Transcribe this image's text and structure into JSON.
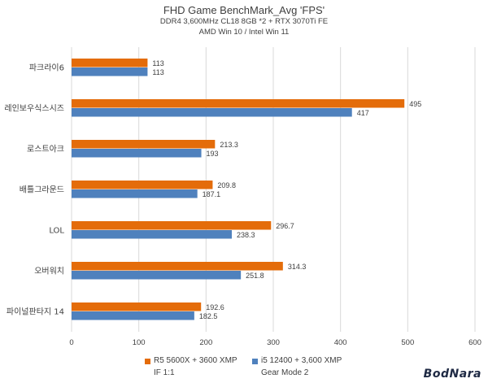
{
  "header": {
    "title": "FHD Game BenchMark_Avg 'FPS'",
    "subtitle1": "DDR4 3,600MHz CL18 8GB *2 + RTX 3070Ti FE",
    "subtitle2": "AMD Win 10 / Intel Win 11"
  },
  "legend": {
    "r5_line1": "R5 5600X + 3600 XMP",
    "r5_line2": "IF 1:1",
    "i5_line1": "i5 12400 + 3,600 XMP",
    "i5_line2": "Gear Mode 2"
  },
  "watermark": "BodNara",
  "colors": {
    "orange": "#E46C0A",
    "blue": "#4F81BD",
    "grid": "#D9D9D9",
    "text": "#404040"
  },
  "chart_data": {
    "type": "bar",
    "orientation": "horizontal",
    "categories": [
      "파크라이6",
      "레인보우식스시즈",
      "로스트아크",
      "배틀그라운드",
      "LOL",
      "오버워치",
      "파이널판타지 14"
    ],
    "series": [
      {
        "name": "R5 5600X + 3600 XMP IF 1:1",
        "color": "#E46C0A",
        "values": [
          113,
          495,
          213.3,
          209.8,
          296.7,
          314.3,
          192.6
        ],
        "labels": [
          "113",
          "495",
          "213.3",
          "209.8",
          "296.7",
          "314.3",
          "192.6"
        ]
      },
      {
        "name": "i5 12400 + 3,600 XMP Gear Mode 2",
        "color": "#4F81BD",
        "values": [
          113,
          417,
          193,
          187.1,
          238.3,
          251.8,
          182.5
        ],
        "labels": [
          "113",
          "417",
          "193",
          "187.1",
          "238.3",
          "251.8",
          "182.5"
        ]
      }
    ],
    "xlim": [
      0,
      600
    ],
    "xticks": [
      "0",
      "100",
      "200",
      "300",
      "400",
      "500",
      "600"
    ],
    "grid": true,
    "legend_position": "bottom"
  }
}
